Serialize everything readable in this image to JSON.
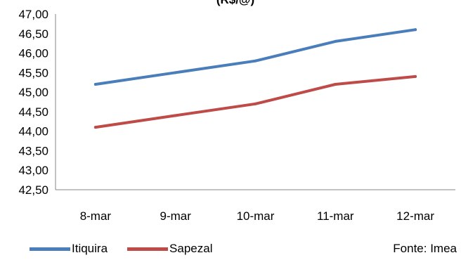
{
  "chart_data": {
    "type": "line",
    "title": "(R$/@)",
    "categories": [
      "8-mar",
      "9-mar",
      "10-mar",
      "11-mar",
      "12-mar"
    ],
    "series": [
      {
        "name": "Itiquira",
        "color": "#4a7ebb",
        "values": [
          45.2,
          45.5,
          45.8,
          46.3,
          46.6
        ]
      },
      {
        "name": "Sapezal",
        "color": "#be4b48",
        "values": [
          44.1,
          44.4,
          44.7,
          45.2,
          45.4
        ]
      }
    ],
    "ylim": [
      42.5,
      47.0
    ],
    "yticks": [
      "42,50",
      "43,00",
      "43,50",
      "44,00",
      "44,50",
      "45,00",
      "45,50",
      "46,00",
      "46,50",
      "47,00"
    ],
    "legend_position": "bottom-left",
    "grid": false
  },
  "source_label": "Fonte: Imea"
}
